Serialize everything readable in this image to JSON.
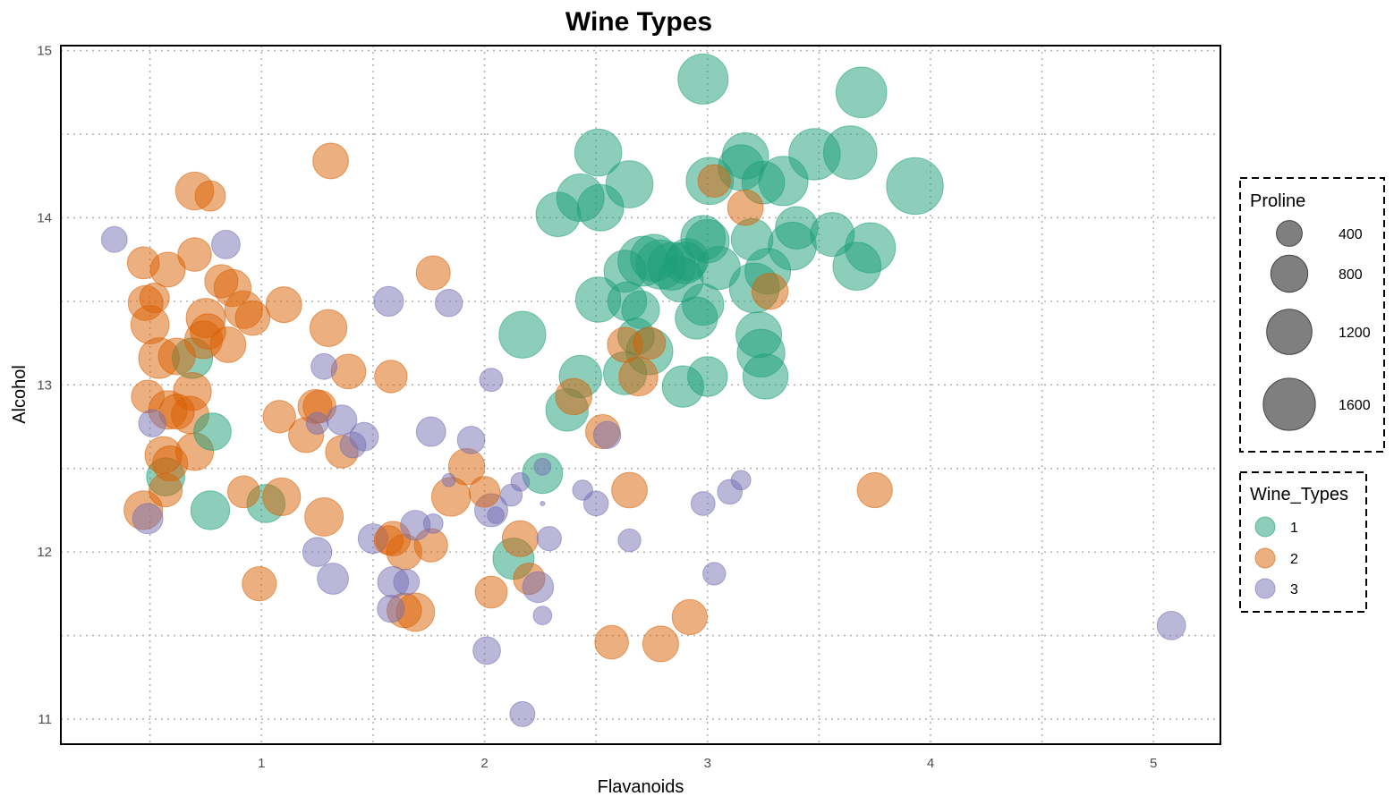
{
  "chart_data": {
    "type": "scatter",
    "title": "Wine Types",
    "xlabel": "Flavanoids",
    "ylabel": "Alcohol",
    "xlim": [
      0.1,
      5.3
    ],
    "ylim": [
      10.85,
      15.03
    ],
    "x_ticks": [
      "1",
      "2",
      "3",
      "4",
      "5"
    ],
    "y_ticks": [
      "11",
      "12",
      "13",
      "14",
      "15"
    ],
    "grid": "dotted, major and minor",
    "size_legend": {
      "title": "Proline",
      "entries": [
        {
          "label": "400",
          "value": 400
        },
        {
          "label": "800",
          "value": 800
        },
        {
          "label": "1200",
          "value": 1200
        },
        {
          "label": "1600",
          "value": 1600
        }
      ]
    },
    "color_legend": {
      "title": "Wine_Types",
      "entries": [
        {
          "label": "1",
          "color": "#1B9E77"
        },
        {
          "label": "2",
          "color": "#D95F02"
        },
        {
          "label": "3",
          "color": "#7570B3"
        }
      ]
    },
    "series": [
      {
        "name": "1",
        "color": "#1B9E77",
        "points": [
          [
            2.98,
            14.83,
            1480
          ],
          [
            3.69,
            14.75,
            1510
          ],
          [
            2.51,
            14.39,
            1290
          ],
          [
            3.64,
            14.39,
            1680
          ],
          [
            3.48,
            14.38,
            1550
          ],
          [
            3.17,
            14.37,
            1250
          ],
          [
            3.15,
            14.3,
            1220
          ],
          [
            3.93,
            14.19,
            1900
          ],
          [
            2.65,
            14.2,
            1300
          ],
          [
            3.01,
            14.22,
            1300
          ],
          [
            3.34,
            14.22,
            1430
          ],
          [
            3.25,
            14.21,
            1060
          ],
          [
            2.43,
            14.12,
            1320
          ],
          [
            2.52,
            14.06,
            1260
          ],
          [
            2.33,
            14.02,
            1150
          ],
          [
            3.4,
            13.94,
            1050
          ],
          [
            3.56,
            13.9,
            1120
          ],
          [
            2.98,
            13.88,
            1160
          ],
          [
            3.0,
            13.86,
            1100
          ],
          [
            3.73,
            13.82,
            1480
          ],
          [
            3.2,
            13.87,
            1010
          ],
          [
            3.38,
            13.83,
            1350
          ],
          [
            2.76,
            13.76,
            1300
          ],
          [
            2.71,
            13.74,
            1460
          ],
          [
            2.9,
            13.73,
            1010
          ],
          [
            3.67,
            13.71,
            1350
          ],
          [
            2.79,
            13.72,
            1420
          ],
          [
            2.84,
            13.71,
            1340
          ],
          [
            2.91,
            13.75,
            1020
          ],
          [
            3.05,
            13.7,
            1080
          ],
          [
            2.63,
            13.68,
            1030
          ],
          [
            3.27,
            13.68,
            1220
          ],
          [
            3.21,
            13.58,
            1460
          ],
          [
            2.88,
            13.63,
            1180
          ],
          [
            2.51,
            13.51,
            1190
          ],
          [
            2.98,
            13.48,
            1000
          ],
          [
            2.64,
            13.5,
            885
          ],
          [
            2.7,
            13.45,
            830
          ],
          [
            2.95,
            13.4,
            1040
          ],
          [
            2.17,
            13.3,
            1280
          ],
          [
            3.23,
            13.3,
            1220
          ],
          [
            3.24,
            13.19,
            1330
          ],
          [
            2.74,
            13.2,
            1270
          ],
          [
            2.68,
            13.29,
            780
          ],
          [
            2.63,
            13.07,
            1080
          ],
          [
            3.26,
            13.05,
            1190
          ],
          [
            2.43,
            13.05,
            1050
          ],
          [
            3.0,
            13.05,
            920
          ],
          [
            2.89,
            12.99,
            1000
          ],
          [
            2.37,
            12.85,
            1050
          ],
          [
            2.26,
            12.47,
            940
          ],
          [
            0.77,
            12.25,
            880
          ],
          [
            1.02,
            12.29,
            850
          ],
          [
            2.13,
            11.96,
            985
          ],
          [
            0.57,
            12.45,
            850
          ],
          [
            0.69,
            13.16,
            950
          ],
          [
            0.78,
            12.72,
            815
          ]
        ]
      },
      {
        "name": "2",
        "color": "#D95F02",
        "points": [
          [
            1.31,
            14.34,
            740
          ],
          [
            0.7,
            14.16,
            840
          ],
          [
            0.77,
            14.13,
            545
          ],
          [
            3.03,
            14.22,
            620
          ],
          [
            3.17,
            14.06,
            740
          ],
          [
            1.77,
            13.67,
            680
          ],
          [
            0.58,
            13.69,
            710
          ],
          [
            0.7,
            13.78,
            660
          ],
          [
            0.47,
            13.73,
            600
          ],
          [
            0.82,
            13.62,
            650
          ],
          [
            0.87,
            13.58,
            800
          ],
          [
            3.28,
            13.56,
            760
          ],
          [
            1.1,
            13.48,
            750
          ],
          [
            0.48,
            13.49,
            710
          ],
          [
            0.52,
            13.52,
            520
          ],
          [
            0.92,
            13.45,
            830
          ],
          [
            0.96,
            13.4,
            700
          ],
          [
            0.75,
            13.4,
            900
          ],
          [
            0.5,
            13.36,
            855
          ],
          [
            1.3,
            13.34,
            800
          ],
          [
            0.76,
            13.32,
            730
          ],
          [
            0.74,
            13.27,
            830
          ],
          [
            0.85,
            13.24,
            740
          ],
          [
            0.54,
            13.16,
            960
          ],
          [
            0.62,
            13.17,
            790
          ],
          [
            2.63,
            13.24,
            720
          ],
          [
            2.74,
            13.25,
            600
          ],
          [
            1.39,
            13.08,
            700
          ],
          [
            1.58,
            13.05,
            620
          ],
          [
            2.69,
            13.05,
            880
          ],
          [
            2.4,
            12.93,
            770
          ],
          [
            0.49,
            12.93,
            630
          ],
          [
            0.69,
            12.96,
            840
          ],
          [
            1.24,
            12.87,
            680
          ],
          [
            1.26,
            12.87,
            630
          ],
          [
            0.58,
            12.85,
            870
          ],
          [
            0.62,
            12.84,
            720
          ],
          [
            0.68,
            12.82,
            820
          ],
          [
            1.08,
            12.81,
            620
          ],
          [
            1.2,
            12.7,
            720
          ],
          [
            2.53,
            12.72,
            680
          ],
          [
            0.7,
            12.6,
            830
          ],
          [
            1.36,
            12.6,
            620
          ],
          [
            0.56,
            12.58,
            800
          ],
          [
            1.92,
            12.51,
            770
          ],
          [
            0.59,
            12.53,
            720
          ],
          [
            0.57,
            12.37,
            650
          ],
          [
            3.75,
            12.37,
            720
          ],
          [
            2.65,
            12.37,
            740
          ],
          [
            0.92,
            12.36,
            600
          ],
          [
            2.0,
            12.36,
            560
          ],
          [
            1.09,
            12.33,
            830
          ],
          [
            1.85,
            12.33,
            880
          ],
          [
            0.47,
            12.25,
            870
          ],
          [
            1.28,
            12.21,
            860
          ],
          [
            2.16,
            12.08,
            750
          ],
          [
            1.59,
            12.08,
            700
          ],
          [
            1.57,
            12.07,
            500
          ],
          [
            1.64,
            12.0,
            730
          ],
          [
            1.76,
            12.04,
            650
          ],
          [
            0.99,
            11.81,
            680
          ],
          [
            2.2,
            11.84,
            580
          ],
          [
            2.03,
            11.76,
            600
          ],
          [
            1.64,
            11.65,
            700
          ],
          [
            1.69,
            11.64,
            860
          ],
          [
            2.92,
            11.61,
            720
          ],
          [
            2.57,
            11.46,
            660
          ],
          [
            2.79,
            11.45,
            750
          ]
        ]
      },
      {
        "name": "3",
        "color": "#7570B3",
        "points": [
          [
            0.34,
            13.87,
            400
          ],
          [
            0.84,
            13.84,
            480
          ],
          [
            1.57,
            13.5,
            520
          ],
          [
            1.84,
            13.49,
            440
          ],
          [
            1.28,
            13.11,
            400
          ],
          [
            2.03,
            13.03,
            330
          ],
          [
            0.51,
            12.77,
            440
          ],
          [
            1.36,
            12.79,
            530
          ],
          [
            1.25,
            12.77,
            300
          ],
          [
            1.76,
            12.72,
            510
          ],
          [
            1.46,
            12.69,
            480
          ],
          [
            1.94,
            12.67,
            450
          ],
          [
            1.41,
            12.64,
            400
          ],
          [
            2.55,
            12.7,
            440
          ],
          [
            2.26,
            12.51,
            200
          ],
          [
            3.15,
            12.43,
            250
          ],
          [
            2.16,
            12.42,
            230
          ],
          [
            1.84,
            12.43,
            150
          ],
          [
            2.12,
            12.34,
            300
          ],
          [
            2.44,
            12.37,
            260
          ],
          [
            3.1,
            12.36,
            370
          ],
          [
            2.5,
            12.29,
            370
          ],
          [
            2.98,
            12.29,
            350
          ],
          [
            2.26,
            12.29,
            100
          ],
          [
            2.03,
            12.25,
            640
          ],
          [
            2.05,
            12.22,
            200
          ],
          [
            0.49,
            12.2,
            540
          ],
          [
            1.69,
            12.16,
            520
          ],
          [
            1.77,
            12.17,
            250
          ],
          [
            1.5,
            12.08,
            520
          ],
          [
            2.29,
            12.08,
            360
          ],
          [
            2.65,
            12.07,
            320
          ],
          [
            1.25,
            12.0,
            500
          ],
          [
            1.32,
            11.84,
            570
          ],
          [
            1.59,
            11.82,
            560
          ],
          [
            1.65,
            11.82,
            400
          ],
          [
            2.24,
            11.79,
            560
          ],
          [
            3.03,
            11.87,
            320
          ],
          [
            1.58,
            11.66,
            440
          ],
          [
            2.26,
            11.62,
            230
          ],
          [
            5.08,
            11.56,
            480
          ],
          [
            2.01,
            11.41,
            450
          ],
          [
            2.17,
            11.03,
            380
          ]
        ]
      }
    ]
  }
}
